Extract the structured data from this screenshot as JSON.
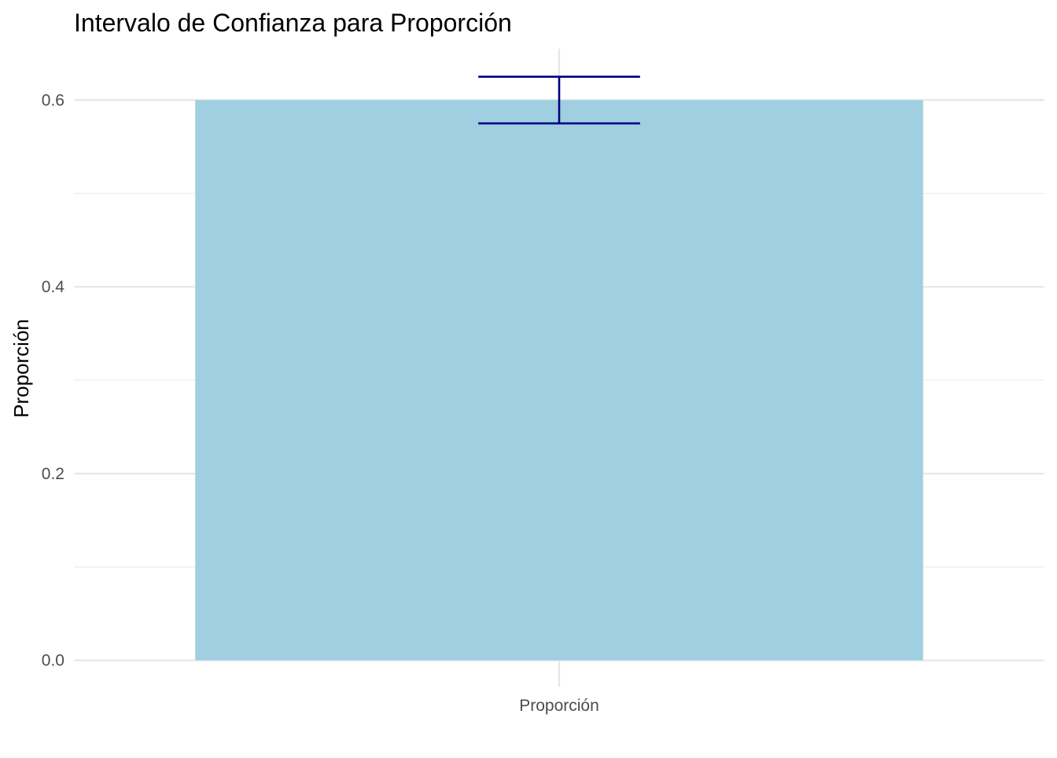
{
  "chart_data": {
    "type": "bar",
    "title": "Intervalo de Confianza para Proporción",
    "xlabel": "",
    "ylabel": "Proporción",
    "categories": [
      "Proporción"
    ],
    "values": [
      0.6
    ],
    "error_bars": [
      {
        "lower": 0.575,
        "upper": 0.625
      }
    ],
    "ylim": [
      -0.028,
      0.655
    ],
    "y_ticks": [
      0.0,
      0.2,
      0.4,
      0.6
    ],
    "y_tick_labels": [
      "0.0",
      "0.2",
      "0.4",
      "0.6"
    ],
    "grid": true,
    "legend": "none",
    "colors": {
      "bar_fill": "#a0cfe1",
      "error_bar": "#000080"
    }
  }
}
